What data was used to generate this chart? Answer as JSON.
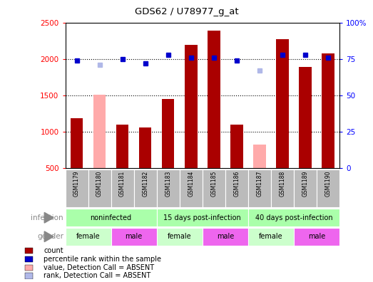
{
  "title": "GDS62 / U78977_g_at",
  "samples": [
    "GSM1179",
    "GSM1180",
    "GSM1181",
    "GSM1182",
    "GSM1183",
    "GSM1184",
    "GSM1185",
    "GSM1186",
    "GSM1187",
    "GSM1188",
    "GSM1189",
    "GSM1190"
  ],
  "counts": [
    1190,
    1510,
    1100,
    1060,
    1450,
    2190,
    2390,
    1100,
    820,
    2270,
    1890,
    2075
  ],
  "absent_count": [
    false,
    true,
    false,
    false,
    false,
    false,
    false,
    false,
    true,
    false,
    false,
    false
  ],
  "percentile": [
    74,
    71,
    75,
    72,
    78,
    76,
    76,
    74,
    67,
    78,
    78,
    76
  ],
  "absent_rank": [
    false,
    true,
    false,
    false,
    false,
    false,
    false,
    false,
    true,
    false,
    false,
    false
  ],
  "ylim_left": [
    500,
    2500
  ],
  "ylim_right": [
    0,
    100
  ],
  "yticks_left": [
    500,
    1000,
    1500,
    2000,
    2500
  ],
  "yticks_right": [
    0,
    25,
    50,
    75,
    100
  ],
  "infection_groups": [
    {
      "label": "noninfected",
      "start": 0,
      "end": 4
    },
    {
      "label": "15 days post-infection",
      "start": 4,
      "end": 8
    },
    {
      "label": "40 days post-infection",
      "start": 8,
      "end": 12
    }
  ],
  "gender_groups": [
    {
      "label": "female",
      "start": 0,
      "end": 2,
      "color": "#ccffcc"
    },
    {
      "label": "male",
      "start": 2,
      "end": 4,
      "color": "#ee66ee"
    },
    {
      "label": "female",
      "start": 4,
      "end": 6,
      "color": "#ccffcc"
    },
    {
      "label": "male",
      "start": 6,
      "end": 8,
      "color": "#ee66ee"
    },
    {
      "label": "female",
      "start": 8,
      "end": 10,
      "color": "#ccffcc"
    },
    {
      "label": "male",
      "start": 10,
      "end": 12,
      "color": "#ee66ee"
    }
  ],
  "bar_color_present": "#aa0000",
  "bar_color_absent": "#ffaaaa",
  "dot_color_present": "#0000cc",
  "dot_color_absent": "#b0b8e8",
  "infection_color": "#aaffaa",
  "xaxis_bg": "#bbbbbb",
  "legend_items": [
    {
      "label": "count",
      "color": "#aa0000"
    },
    {
      "label": "percentile rank within the sample",
      "color": "#0000cc"
    },
    {
      "label": "value, Detection Call = ABSENT",
      "color": "#ffaaaa"
    },
    {
      "label": "rank, Detection Call = ABSENT",
      "color": "#b0b8e8"
    }
  ],
  "left_label_color": "#888888",
  "arrow_color": "#888888"
}
